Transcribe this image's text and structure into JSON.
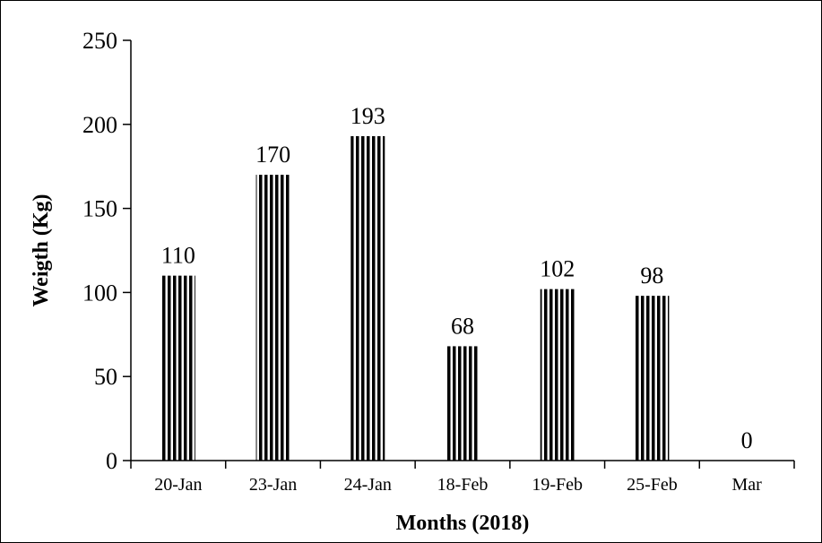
{
  "chart_data": {
    "type": "bar",
    "categories": [
      "20-Jan",
      "23-Jan",
      "24-Jan",
      "18-Feb",
      "19-Feb",
      "25-Feb",
      "Mar"
    ],
    "values": [
      110,
      170,
      193,
      68,
      102,
      98,
      0
    ],
    "data_labels": [
      "110",
      "170",
      "193",
      "68",
      "102",
      "98",
      "0"
    ],
    "xlabel": "Months (2018)",
    "ylabel": "Weigth (Kg)",
    "ylim": [
      0,
      250
    ],
    "yticks": [
      0,
      50,
      100,
      150,
      200,
      250
    ],
    "grid": false,
    "legend": "none",
    "bar_pattern": "vertical-stripes",
    "colors": {
      "stripe": "#000000",
      "background": "#ffffff",
      "axis": "#000000"
    }
  }
}
